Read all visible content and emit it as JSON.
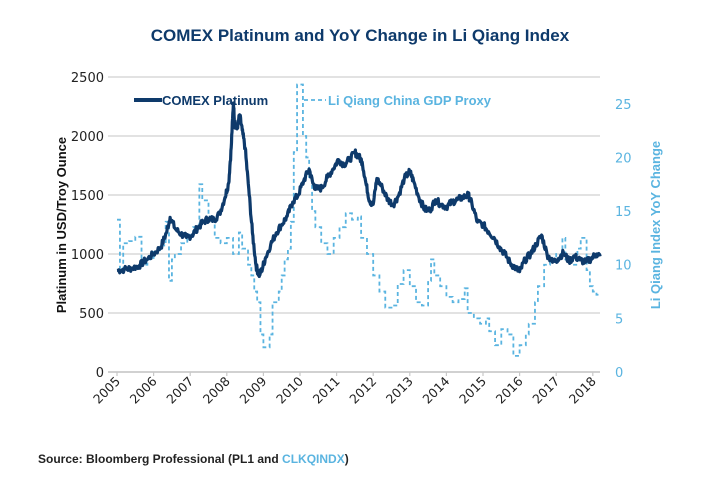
{
  "chart_data": {
    "type": "line",
    "title": "COMEX Platinum and YoY Change in Li Qiang Index",
    "xlabel": "",
    "ylabel": "Platinum in USD/Troy Ounce",
    "ylabel_right": "Li Qiang Index YoY Change",
    "xlim": [
      2005,
      2018.3
    ],
    "ylim": [
      0,
      2500
    ],
    "ylim_right": [
      0,
      27.5
    ],
    "x_ticks": [
      "2005",
      "2006",
      "2007",
      "2008",
      "2009",
      "2010",
      "2011",
      "2012",
      "2013",
      "2014",
      "2015",
      "2016",
      "2017",
      "2018"
    ],
    "y_ticks_left": [
      "0",
      "500",
      "1000",
      "1500",
      "2000",
      "2500"
    ],
    "y_ticks_right": [
      "0",
      "5",
      "10",
      "15",
      "20",
      "25"
    ],
    "grid": true,
    "legend_position": "top-left",
    "series": [
      {
        "name": "COMEX Platinum",
        "axis": "left",
        "color": "#0e3a6b",
        "style": "solid",
        "x": [
          2005.0,
          2005.2,
          2005.4,
          2005.6,
          2005.8,
          2006.0,
          2006.2,
          2006.35,
          2006.45,
          2006.6,
          2006.75,
          2006.9,
          2007.05,
          2007.2,
          2007.35,
          2007.5,
          2007.65,
          2007.8,
          2007.95,
          2008.05,
          2008.12,
          2008.18,
          2008.22,
          2008.28,
          2008.35,
          2008.42,
          2008.5,
          2008.6,
          2008.7,
          2008.8,
          2008.88,
          2008.95,
          2009.05,
          2009.2,
          2009.35,
          2009.5,
          2009.65,
          2009.8,
          2009.95,
          2010.1,
          2010.25,
          2010.35,
          2010.45,
          2010.6,
          2010.75,
          2010.9,
          2011.05,
          2011.2,
          2011.35,
          2011.5,
          2011.6,
          2011.7,
          2011.8,
          2011.9,
          2012.0,
          2012.1,
          2012.25,
          2012.4,
          2012.55,
          2012.7,
          2012.85,
          2013.0,
          2013.1,
          2013.25,
          2013.4,
          2013.55,
          2013.7,
          2013.85,
          2014.0,
          2014.15,
          2014.3,
          2014.45,
          2014.6,
          2014.7,
          2014.85,
          2015.0,
          2015.15,
          2015.3,
          2015.45,
          2015.6,
          2015.75,
          2015.9,
          2016.0,
          2016.15,
          2016.3,
          2016.45,
          2016.6,
          2016.75,
          2016.9,
          2017.05,
          2017.2,
          2017.35,
          2017.5,
          2017.65,
          2017.8,
          2017.95,
          2018.1,
          2018.2
        ],
        "values": [
          860,
          870,
          880,
          900,
          950,
          1000,
          1060,
          1180,
          1310,
          1210,
          1170,
          1140,
          1160,
          1220,
          1270,
          1300,
          1290,
          1340,
          1480,
          1600,
          1900,
          2280,
          2100,
          2060,
          2180,
          2050,
          1900,
          1550,
          1180,
          900,
          820,
          860,
          960,
          1080,
          1180,
          1250,
          1320,
          1440,
          1500,
          1620,
          1720,
          1600,
          1550,
          1560,
          1650,
          1720,
          1800,
          1760,
          1800,
          1860,
          1830,
          1780,
          1600,
          1450,
          1420,
          1640,
          1560,
          1460,
          1420,
          1500,
          1640,
          1700,
          1620,
          1480,
          1380,
          1370,
          1460,
          1420,
          1400,
          1440,
          1460,
          1480,
          1500,
          1420,
          1270,
          1250,
          1190,
          1140,
          1060,
          1000,
          920,
          880,
          850,
          950,
          1000,
          1080,
          1160,
          1000,
          930,
          960,
          1010,
          940,
          980,
          950,
          930,
          960,
          1000,
          980
        ]
      },
      {
        "name": "Li Qiang China GDP Proxy",
        "axis": "right",
        "color": "#5ab4e0",
        "style": "dashed-step",
        "x": [
          2005.0,
          2005.08,
          2005.17,
          2005.33,
          2005.5,
          2005.67,
          2005.83,
          2006.0,
          2006.17,
          2006.33,
          2006.42,
          2006.5,
          2006.58,
          2006.75,
          2006.92,
          2007.08,
          2007.25,
          2007.33,
          2007.5,
          2007.67,
          2007.83,
          2008.0,
          2008.17,
          2008.33,
          2008.42,
          2008.58,
          2008.67,
          2008.75,
          2008.83,
          2008.92,
          2009.0,
          2009.17,
          2009.25,
          2009.42,
          2009.5,
          2009.58,
          2009.67,
          2009.75,
          2009.83,
          2009.92,
          2010.08,
          2010.17,
          2010.25,
          2010.33,
          2010.42,
          2010.58,
          2010.75,
          2010.92,
          2011.08,
          2011.25,
          2011.42,
          2011.58,
          2011.67,
          2011.83,
          2012.0,
          2012.17,
          2012.33,
          2012.5,
          2012.67,
          2012.83,
          2013.0,
          2013.17,
          2013.33,
          2013.5,
          2013.58,
          2013.67,
          2013.83,
          2014.0,
          2014.17,
          2014.33,
          2014.5,
          2014.58,
          2014.75,
          2014.92,
          2015.08,
          2015.17,
          2015.33,
          2015.5,
          2015.67,
          2015.83,
          2016.0,
          2016.17,
          2016.25,
          2016.42,
          2016.5,
          2016.67,
          2016.83,
          2017.0,
          2017.17,
          2017.25,
          2017.42,
          2017.58,
          2017.67,
          2017.83,
          2017.92,
          2018.0,
          2018.1,
          2018.2
        ],
        "values": [
          14.2,
          9.5,
          12.0,
          12.2,
          12.6,
          10.0,
          10.5,
          11.2,
          11.8,
          14.0,
          8.5,
          10.5,
          11.0,
          12.0,
          12.8,
          13.5,
          17.5,
          16.0,
          14.5,
          12.5,
          12.0,
          12.5,
          11.0,
          13.0,
          11.5,
          10.0,
          9.0,
          7.5,
          6.5,
          3.5,
          2.3,
          3.5,
          6.5,
          7.5,
          9.0,
          10.5,
          11.5,
          14.0,
          20.5,
          26.8,
          22.0,
          20.0,
          18.0,
          15.0,
          13.5,
          12.0,
          11.0,
          12.5,
          13.5,
          14.8,
          14.2,
          14.5,
          12.5,
          11.0,
          9.0,
          7.5,
          6.0,
          6.2,
          8.2,
          9.5,
          8.0,
          6.5,
          6.2,
          8.5,
          10.5,
          9.0,
          8.0,
          7.0,
          6.5,
          6.8,
          7.8,
          5.5,
          5.0,
          4.5,
          5.0,
          3.8,
          2.5,
          4.0,
          3.5,
          1.5,
          2.5,
          3.5,
          4.5,
          6.5,
          8.0,
          10.0,
          10.5,
          11.0,
          12.5,
          10.5,
          10.0,
          11.5,
          12.5,
          9.5,
          8.0,
          7.5,
          7.2,
          7.2
        ]
      }
    ],
    "source_prefix": "Source: Bloomberg Professional (PL1 and ",
    "source_highlight": "CLKQINDX",
    "source_suffix": ")"
  }
}
